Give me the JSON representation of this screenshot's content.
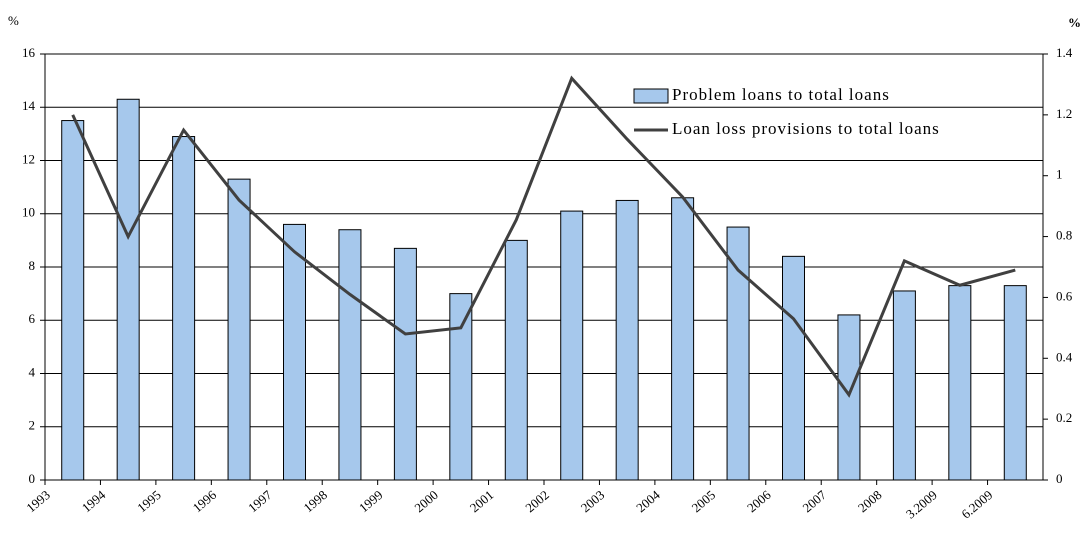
{
  "chart_data": {
    "type": "bar_line",
    "y_label": "%",
    "y2_label": "%",
    "categories": [
      "1993",
      "1994",
      "1995",
      "1996",
      "1997",
      "1998",
      "1999",
      "2000",
      "2001",
      "2002",
      "2003",
      "2004",
      "2005",
      "2006",
      "2007",
      "2008",
      "3.2009",
      "6.2009"
    ],
    "series": [
      {
        "name": "Problem loans to total loans",
        "type": "bar",
        "color": "#a6c8ec",
        "values": [
          13.5,
          14.3,
          12.9,
          11.3,
          9.6,
          9.4,
          8.7,
          7.0,
          9.0,
          10.1,
          10.5,
          10.6,
          9.5,
          8.4,
          6.2,
          7.1,
          7.3,
          7.3
        ]
      },
      {
        "name": "Loan loss provisions to total loans",
        "type": "line",
        "axis": "y2",
        "color": "#404040",
        "values": [
          1.2,
          0.8,
          1.15,
          0.92,
          0.75,
          0.61,
          0.48,
          0.5,
          0.855,
          1.32,
          1.12,
          0.93,
          0.69,
          0.53,
          0.28,
          0.72,
          0.64,
          0.69
        ]
      }
    ],
    "ylim": [
      0,
      16
    ],
    "yticks": [
      0,
      2,
      4,
      6,
      8,
      10,
      12,
      14,
      16
    ],
    "y2lim": [
      0,
      1.4
    ],
    "y2ticks": [
      0,
      0.2,
      0.4,
      0.6,
      0.8,
      1,
      1.2,
      1.4
    ],
    "grid": true
  }
}
